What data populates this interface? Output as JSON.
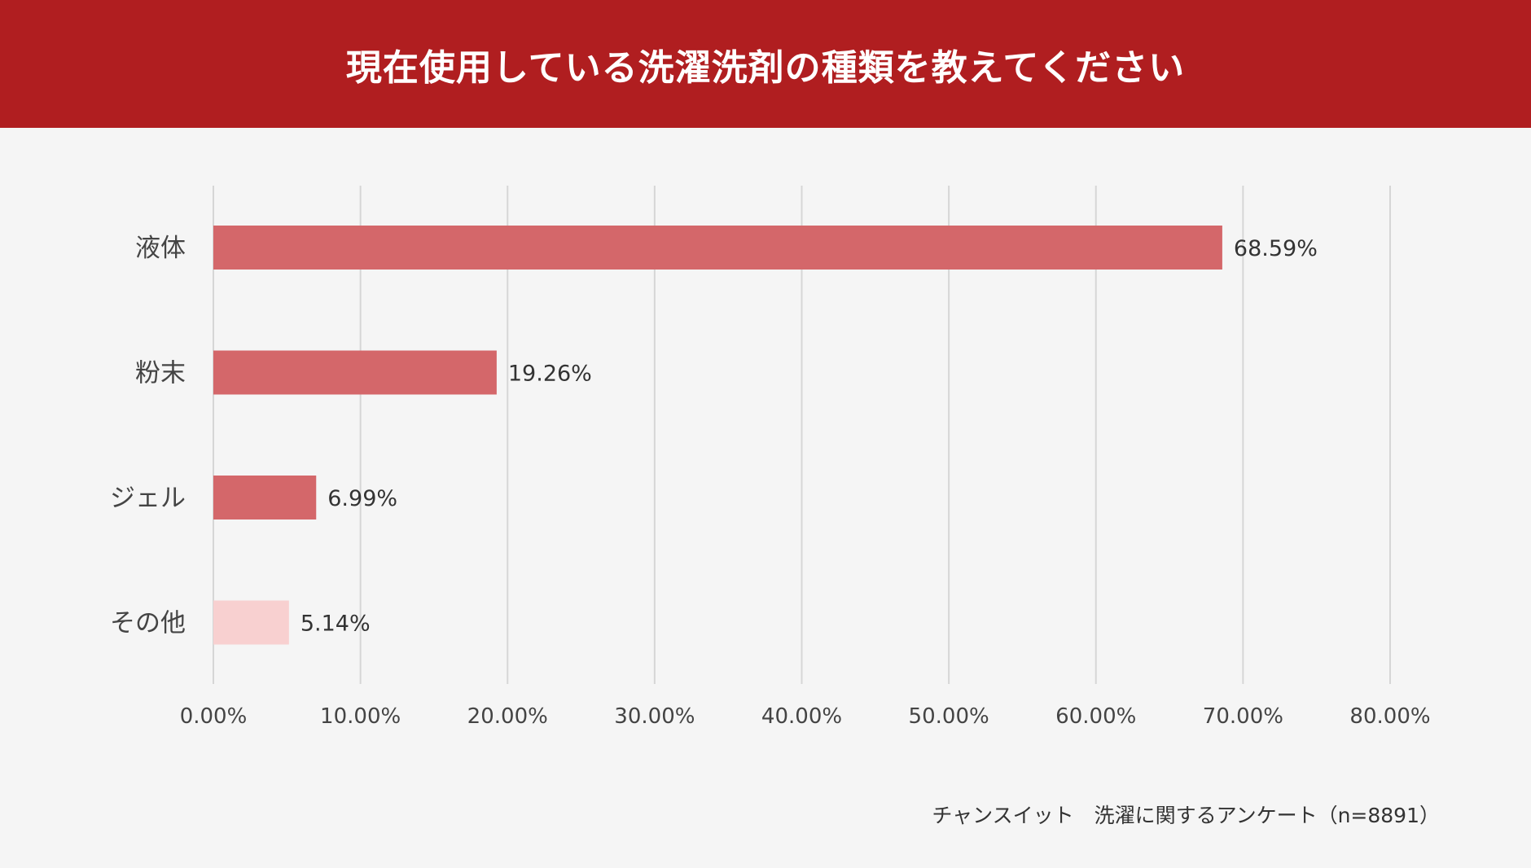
{
  "chart_data": {
    "type": "bar",
    "orientation": "horizontal",
    "title": "現在使用している洗濯洗剤の種類を教えてください",
    "categories": [
      "液体",
      "粉末",
      "ジェル",
      "その他"
    ],
    "values": [
      68.59,
      19.26,
      6.99,
      5.14
    ],
    "value_labels": [
      "68.59%",
      "19.26%",
      "6.99%",
      "5.14%"
    ],
    "xlim": [
      0,
      80
    ],
    "x_ticks": [
      0,
      10,
      20,
      30,
      40,
      50,
      60,
      70,
      80
    ],
    "x_tick_labels": [
      "0.00%",
      "10.00%",
      "20.00%",
      "30.00%",
      "40.00%",
      "50.00%",
      "60.00%",
      "70.00%",
      "80.00%"
    ],
    "grid": true,
    "xlabel": "",
    "ylabel": "",
    "source": "チャンスイット　洗濯に関するアンケート（n=8891）"
  },
  "colors": {
    "header_bg": "#b01e20",
    "bar": "#d4676a",
    "bar_highlight": "#f8d0d0",
    "grid": "#d6d6d6",
    "text": "#444444",
    "background": "#f5f5f5"
  }
}
